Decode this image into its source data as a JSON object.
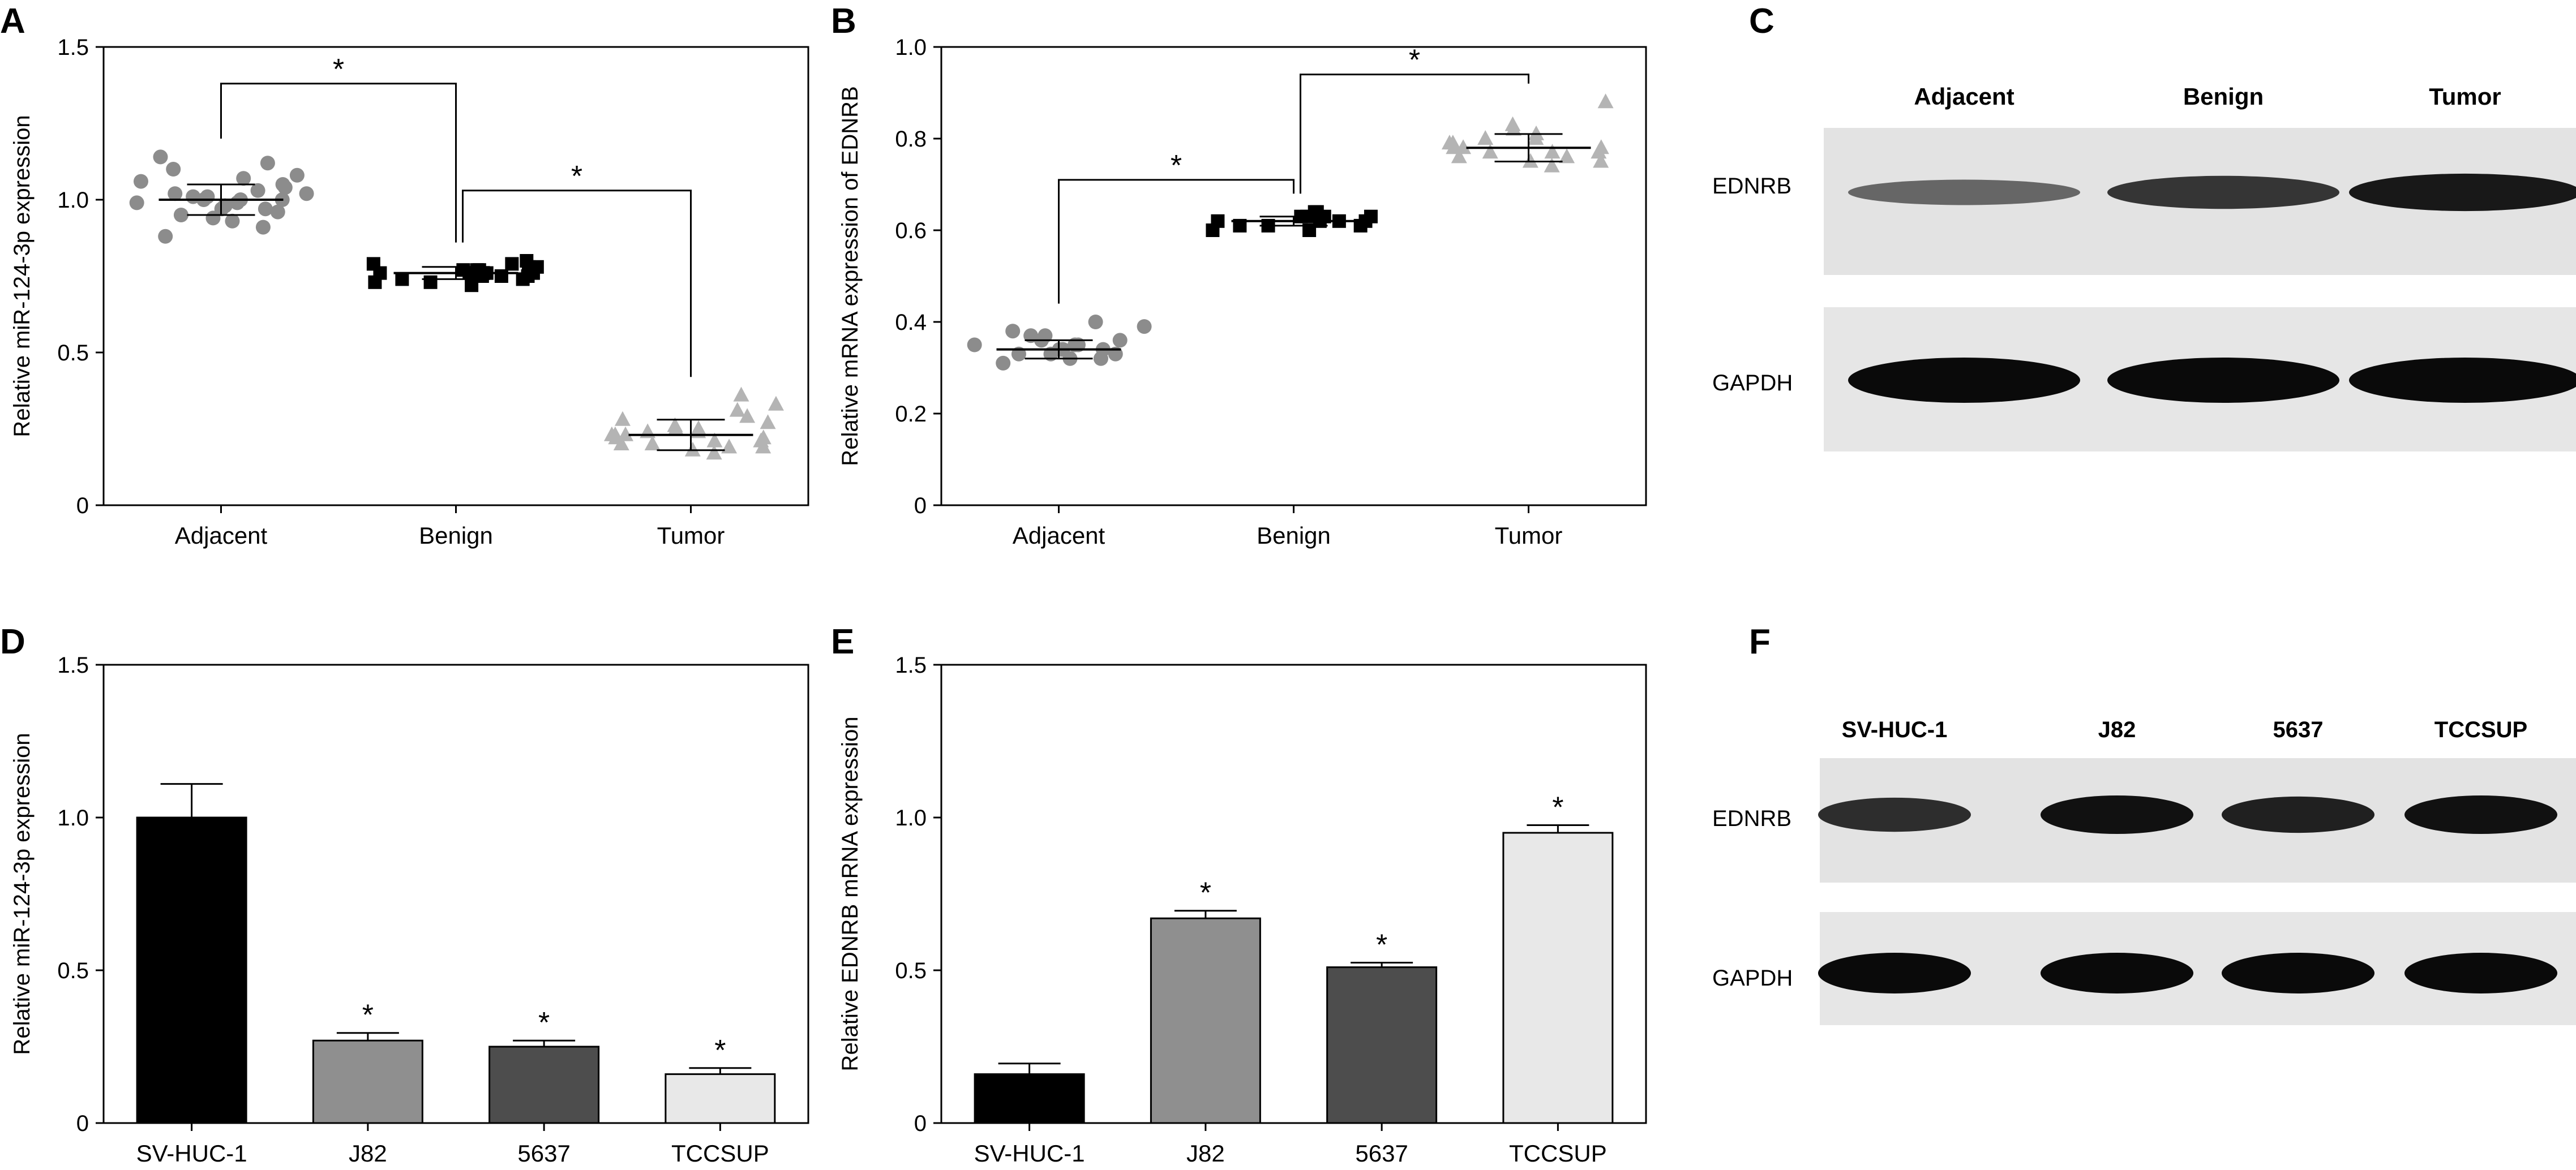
{
  "chart_data": [
    {
      "panel": "A",
      "type": "scatter",
      "categories": [
        "Adjacent",
        "Benign",
        "Tumor"
      ],
      "ylabel": "Relative miR-124-3p expression",
      "ylim": [
        0,
        1.5
      ],
      "yticks": [
        "0",
        "0.5",
        "1.0",
        "1.5"
      ],
      "grid": false,
      "series": [
        {
          "category": "Adjacent",
          "marker": "circle",
          "color": "#8c8c8c",
          "mean": 1.0,
          "sd": 0.05,
          "values": [
            0.88,
            0.91,
            0.93,
            0.94,
            0.95,
            0.96,
            0.97,
            0.97,
            0.98,
            0.98,
            0.99,
            0.99,
            1.0,
            1.0,
            1.0,
            1.01,
            1.01,
            1.02,
            1.02,
            1.03,
            1.04,
            1.05,
            1.06,
            1.07,
            1.08,
            1.1,
            1.12,
            1.14
          ]
        },
        {
          "category": "Benign",
          "marker": "square",
          "color": "#000000",
          "mean": 0.76,
          "sd": 0.02,
          "values": [
            0.72,
            0.73,
            0.73,
            0.74,
            0.74,
            0.75,
            0.75,
            0.75,
            0.76,
            0.76,
            0.76,
            0.76,
            0.77,
            0.77,
            0.77,
            0.78,
            0.78,
            0.79,
            0.79,
            0.8
          ]
        },
        {
          "category": "Tumor",
          "marker": "triangle",
          "color": "#b4b4b4",
          "mean": 0.23,
          "sd": 0.05,
          "values": [
            0.17,
            0.18,
            0.19,
            0.19,
            0.2,
            0.2,
            0.21,
            0.21,
            0.22,
            0.22,
            0.23,
            0.23,
            0.23,
            0.24,
            0.24,
            0.25,
            0.25,
            0.26,
            0.27,
            0.28,
            0.29,
            0.31,
            0.33,
            0.36
          ]
        }
      ],
      "significance": [
        {
          "from": "Adjacent",
          "to": "Benign",
          "label": "*",
          "y": 1.38
        },
        {
          "from": "Benign",
          "to": "Tumor",
          "label": "*",
          "y": 1.03
        }
      ]
    },
    {
      "panel": "B",
      "type": "scatter",
      "categories": [
        "Adjacent",
        "Benign",
        "Tumor"
      ],
      "ylabel": "Relative mRNA expression of EDNRB",
      "ylim": [
        0,
        1.0
      ],
      "yticks": [
        "0",
        "0.2",
        "0.4",
        "0.6",
        "0.8",
        "1.0"
      ],
      "grid": false,
      "series": [
        {
          "category": "Adjacent",
          "marker": "circle",
          "color": "#8c8c8c",
          "mean": 0.34,
          "sd": 0.02,
          "values": [
            0.31,
            0.32,
            0.32,
            0.33,
            0.33,
            0.33,
            0.34,
            0.34,
            0.34,
            0.34,
            0.35,
            0.35,
            0.35,
            0.36,
            0.36,
            0.37,
            0.37,
            0.38,
            0.39,
            0.4
          ]
        },
        {
          "category": "Benign",
          "marker": "square",
          "color": "#000000",
          "mean": 0.62,
          "sd": 0.01,
          "values": [
            0.6,
            0.6,
            0.61,
            0.61,
            0.61,
            0.62,
            0.62,
            0.62,
            0.62,
            0.63,
            0.63,
            0.63,
            0.63,
            0.64,
            0.64
          ]
        },
        {
          "category": "Tumor",
          "marker": "triangle",
          "color": "#b4b4b4",
          "mean": 0.78,
          "sd": 0.03,
          "values": [
            0.74,
            0.75,
            0.75,
            0.76,
            0.76,
            0.77,
            0.77,
            0.77,
            0.78,
            0.78,
            0.78,
            0.79,
            0.79,
            0.8,
            0.8,
            0.81,
            0.82,
            0.83,
            0.88
          ]
        }
      ],
      "significance": [
        {
          "from": "Adjacent",
          "to": "Benign",
          "label": "*",
          "y": 0.71
        },
        {
          "from": "Benign",
          "to": "Tumor",
          "label": "*",
          "y": 0.94
        }
      ]
    },
    {
      "panel": "D",
      "type": "bar",
      "categories": [
        "SV-HUC-1",
        "J82",
        "5637",
        "TCCSUP"
      ],
      "ylabel": "Relative miR-124-3p expression",
      "ylim": [
        0,
        1.5
      ],
      "yticks": [
        "0",
        "0.5",
        "1.0",
        "1.5"
      ],
      "grid": false,
      "values": [
        1.0,
        0.27,
        0.25,
        0.16
      ],
      "errors": [
        0.11,
        0.025,
        0.02,
        0.02
      ],
      "colors": [
        "#000000",
        "#8f8f8f",
        "#4d4d4d",
        "#e8e8e8"
      ],
      "significance_labels": [
        "",
        "*",
        "*",
        "*"
      ]
    },
    {
      "panel": "E",
      "type": "bar",
      "categories": [
        "SV-HUC-1",
        "J82",
        "5637",
        "TCCSUP"
      ],
      "ylabel": "Relative EDNRB mRNA expression",
      "ylim": [
        0,
        1.5
      ],
      "yticks": [
        "0",
        "0.5",
        "1.0",
        "1.5"
      ],
      "grid": false,
      "values": [
        0.16,
        0.67,
        0.51,
        0.95
      ],
      "errors": [
        0.035,
        0.025,
        0.015,
        0.025
      ],
      "colors": [
        "#000000",
        "#8f8f8f",
        "#4d4d4d",
        "#e8e8e8"
      ],
      "significance_labels": [
        "",
        "*",
        "*",
        "*"
      ]
    }
  ],
  "panels": {
    "A": "A",
    "B": "B",
    "C": "C",
    "D": "D",
    "E": "E",
    "F": "F"
  },
  "blots": {
    "C": {
      "lanes": [
        "Adjacent",
        "Benign",
        "Tumor"
      ],
      "rows": [
        "EDNRB",
        "GAPDH"
      ],
      "band_intensity": {
        "EDNRB": [
          0.35,
          0.7,
          0.9
        ],
        "GAPDH": [
          1.0,
          1.0,
          1.0
        ]
      }
    },
    "F": {
      "lanes": [
        "SV-HUC-1",
        "J82",
        "5637",
        "TCCSUP"
      ],
      "rows": [
        "EDNRB",
        "GAPDH"
      ],
      "band_intensity": {
        "EDNRB": [
          0.75,
          0.95,
          0.85,
          0.95
        ],
        "GAPDH": [
          1.0,
          1.0,
          1.0,
          1.0
        ]
      }
    }
  },
  "colors": {
    "axis": "#000000",
    "blot_background": "#e6e6e6",
    "band": "#0a0a0a"
  }
}
